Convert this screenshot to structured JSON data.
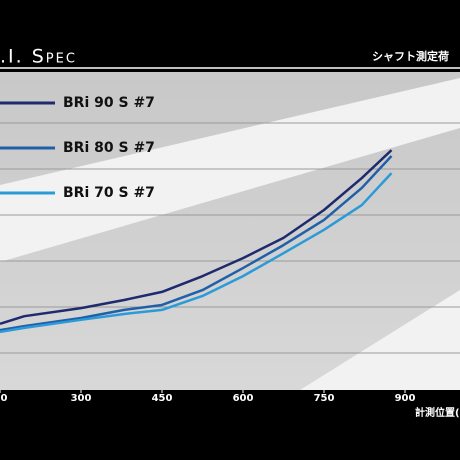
{
  "chart_data": {
    "type": "line",
    "title": ".I. Spec",
    "subtitle": "シャフト測定荷",
    "x_label": "計測位置(",
    "x": [
      150,
      195,
      300,
      380,
      450,
      525,
      600,
      675,
      750,
      820,
      875
    ],
    "series": [
      {
        "name": "BRi 90 S #7",
        "color": "#1f2a6e",
        "values": [
          1.47,
          1.64,
          1.82,
          2.0,
          2.18,
          2.53,
          2.93,
          3.38,
          4.0,
          4.71,
          5.33
        ]
      },
      {
        "name": "BRi 80 S #7",
        "color": "#2160a8",
        "values": [
          1.33,
          1.42,
          1.6,
          1.78,
          1.89,
          2.22,
          2.71,
          3.22,
          3.78,
          4.49,
          5.2
        ]
      },
      {
        "name": "BRi 70 S #7",
        "color": "#2a9ad8",
        "values": [
          1.29,
          1.38,
          1.56,
          1.69,
          1.78,
          2.09,
          2.53,
          3.04,
          3.56,
          4.11,
          4.82
        ]
      }
    ],
    "xlim": [
      150,
      1000
    ],
    "ylim": [
      0,
      7
    ],
    "xticks": [
      {
        "value": 150,
        "label": "0"
      },
      300,
      450,
      600,
      750,
      900
    ]
  }
}
